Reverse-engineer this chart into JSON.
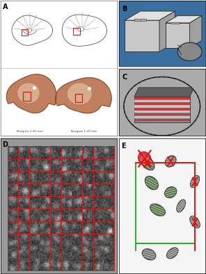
{
  "bg_color": "#e8e8e8",
  "panel_A_bg": "#ffffff",
  "panel_B_bg": "#3a6fa0",
  "panel_C_bg": "#aaaaaa",
  "panel_D_bg": "#999999",
  "panel_E_bg": "#f5f5f5",
  "label_fontsize": 7,
  "bregma_text_left": "Bregma 3.20 mm",
  "bregma_text_right": "Bregma 1.20 mm",
  "brain_fill": "#c08060",
  "brain_edge": "#7a4020",
  "brain_white": "#e8c8a8",
  "outline_color": "#555555",
  "red_box": "#cc2222",
  "red_line": "#cc2222",
  "green_line": "#33aa33",
  "cube_face": "#cccccc",
  "cube_top": "#e0e0e0",
  "cube_right": "#aaaaaa",
  "cube_edge": "#333333",
  "stripe_light": "#cccccc",
  "stripe_red": "#cc3333",
  "circle_fill": "#888888",
  "circle_edge": "#222222",
  "block_dark": "#666666",
  "mito_green": "#5a7a50",
  "mito_dark": "#444444",
  "mito_light_green": "#88aa70",
  "mito_gray": "#777777",
  "mito_red_fill": "#cc4444",
  "grid_red": "#cc2222",
  "n_cols_D": 10,
  "n_rows_D": 10
}
